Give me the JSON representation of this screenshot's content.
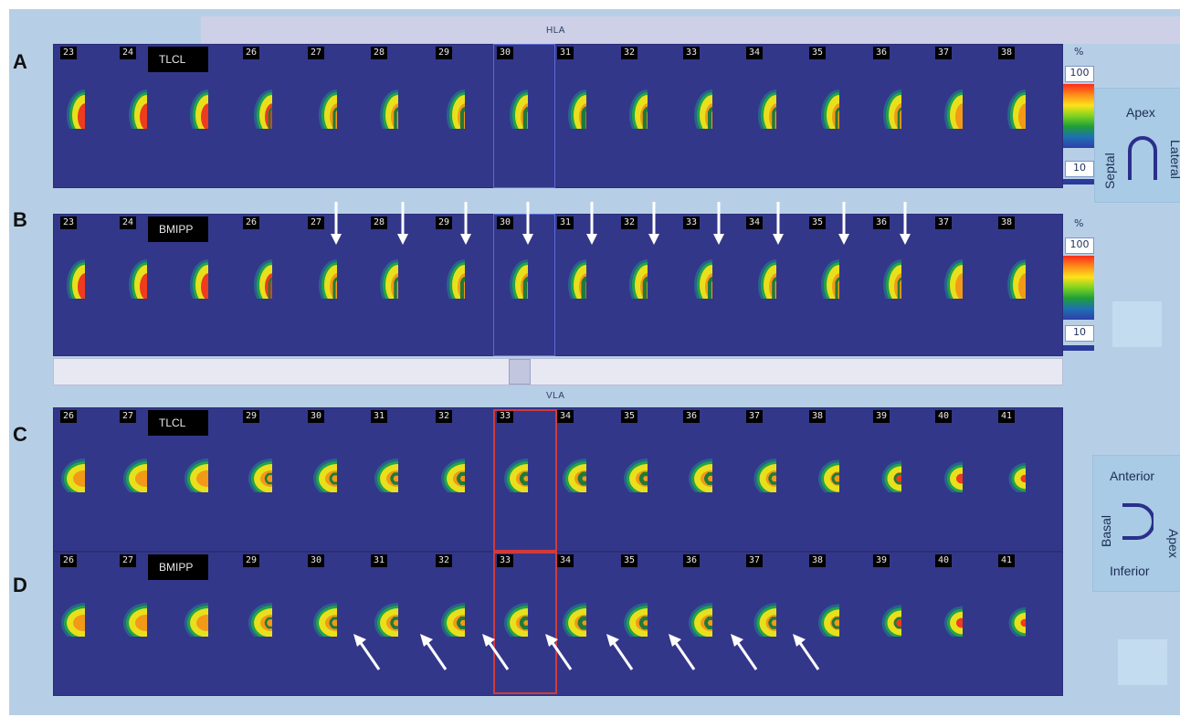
{
  "header": {
    "hla_label": "HLA",
    "vla_label": "VLA"
  },
  "panels": [
    {
      "letter": "A",
      "tracer": "TLCL",
      "frames": [
        "23",
        "24",
        "",
        "26",
        "27",
        "28",
        "29",
        "30",
        "31",
        "32",
        "33",
        "34",
        "35",
        "36",
        "37",
        "38"
      ]
    },
    {
      "letter": "B",
      "tracer": "BMIPP",
      "frames": [
        "23",
        "24",
        "",
        "26",
        "27",
        "28",
        "29",
        "30",
        "31",
        "32",
        "33",
        "34",
        "35",
        "36",
        "37",
        "38"
      ]
    },
    {
      "letter": "C",
      "tracer": "TLCL",
      "frames": [
        "26",
        "27",
        "",
        "29",
        "30",
        "31",
        "32",
        "33",
        "34",
        "35",
        "36",
        "37",
        "38",
        "39",
        "40",
        "41"
      ]
    },
    {
      "letter": "D",
      "tracer": "BMIPP",
      "frames": [
        "26",
        "27",
        "",
        "29",
        "30",
        "31",
        "32",
        "33",
        "34",
        "35",
        "36",
        "37",
        "38",
        "39",
        "40",
        "41"
      ]
    }
  ],
  "color_scale": {
    "unit": "%",
    "max": "100",
    "min": "10",
    "colors": [
      "#ff2a1a",
      "#ff8c1a",
      "#ffe21a",
      "#7ed321",
      "#1e9e3a",
      "#1f6fb5",
      "#2f3fa8"
    ]
  },
  "orientation_hla": {
    "top": "Apex",
    "left": "Septal",
    "right": "Lateral"
  },
  "orientation_vla": {
    "top": "Anterior",
    "left": "Basal",
    "right": "Apex",
    "bottom": "Inferior"
  }
}
